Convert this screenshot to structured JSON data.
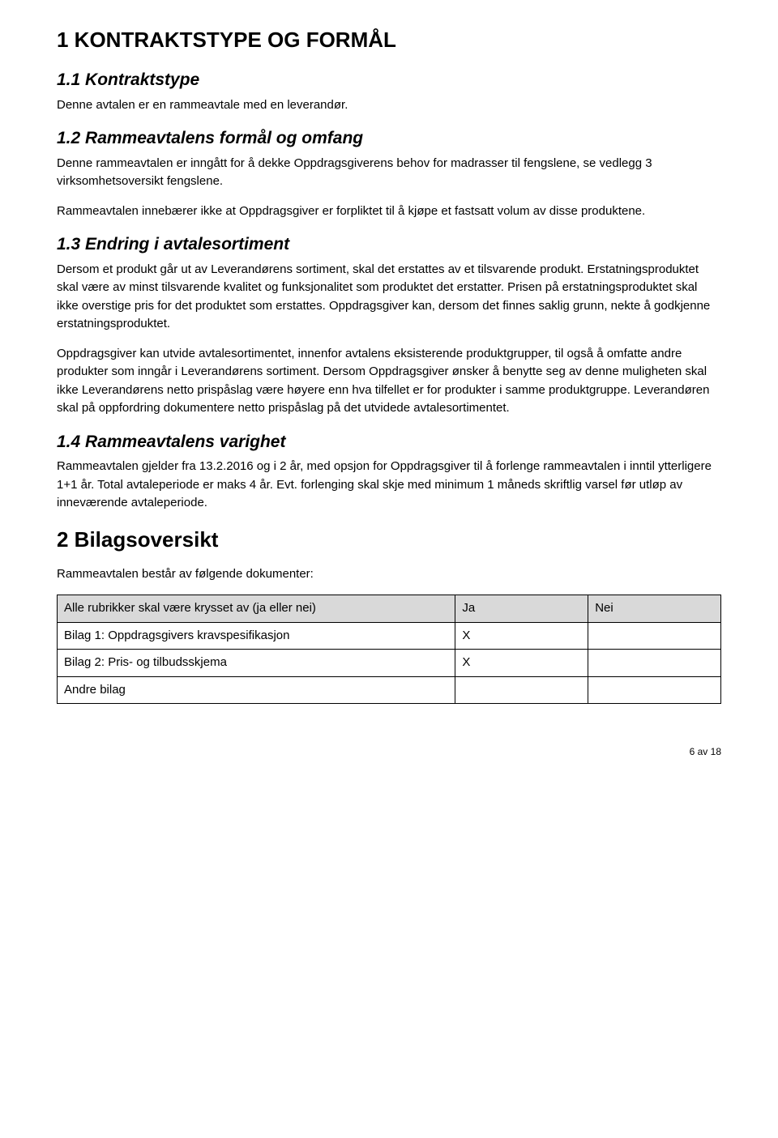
{
  "section1": {
    "title": "1  KONTRAKTSTYPE OG FORMÅL",
    "sub1": {
      "heading": "1.1  Kontraktstype",
      "p1": "Denne avtalen er en rammeavtale med en leverandør."
    },
    "sub2": {
      "heading": "1.2  Rammeavtalens formål og omfang",
      "p1": "Denne rammeavtalen er inngått for å dekke Oppdragsgiverens behov for madrasser til fengslene, se vedlegg 3 virksomhetsoversikt fengslene.",
      "p2": "Rammeavtalen innebærer ikke at Oppdragsgiver er forpliktet til å kjøpe et fastsatt volum av disse produktene."
    },
    "sub3": {
      "heading": "1.3  Endring i avtalesortiment",
      "p1": "Dersom et produkt går ut av Leverandørens sortiment, skal det erstattes av et tilsvarende produkt. Erstatningsproduktet skal være av minst tilsvarende kvalitet og funksjonalitet som produktet det erstatter. Prisen på erstatningsproduktet skal ikke overstige pris for det produktet som erstattes. Oppdragsgiver kan, dersom det finnes saklig grunn, nekte å godkjenne erstatningsproduktet.",
      "p2": "Oppdragsgiver kan utvide avtalesortimentet, innenfor avtalens eksisterende produktgrupper, til også å omfatte andre produkter som inngår i Leverandørens sortiment. Dersom Oppdragsgiver ønsker å benytte seg av denne muligheten skal ikke Leverandørens netto prispåslag være høyere enn hva tilfellet er for produkter i samme produktgruppe. Leverandøren skal på oppfordring dokumentere netto prispåslag på det utvidede avtalesortimentet."
    },
    "sub4": {
      "heading": "1.4  Rammeavtalens varighet",
      "p1": "Rammeavtalen gjelder fra 13.2.2016 og i 2 år, med opsjon for Oppdragsgiver til å forlenge rammeavtalen i inntil ytterligere 1+1 år. Total avtaleperiode er maks 4 år. Evt. forlenging skal skje med minimum 1 måneds skriftlig varsel før utløp av inneværende avtaleperiode."
    }
  },
  "section2": {
    "title": "2  Bilagsoversikt",
    "p1": "Rammeavtalen består av følgende dokumenter:",
    "table": {
      "header": {
        "label": "Alle rubrikker skal være krysset av (ja eller nei)",
        "ja": "Ja",
        "nei": "Nei"
      },
      "rows": [
        {
          "label": "Bilag 1: Oppdragsgivers kravspesifikasjon",
          "ja": "X",
          "nei": ""
        },
        {
          "label": "Bilag 2: Pris- og tilbudsskjema",
          "ja": "X",
          "nei": ""
        },
        {
          "label": "Andre bilag",
          "ja": "",
          "nei": ""
        }
      ]
    }
  },
  "footer": {
    "pageinfo": "6 av 18"
  }
}
